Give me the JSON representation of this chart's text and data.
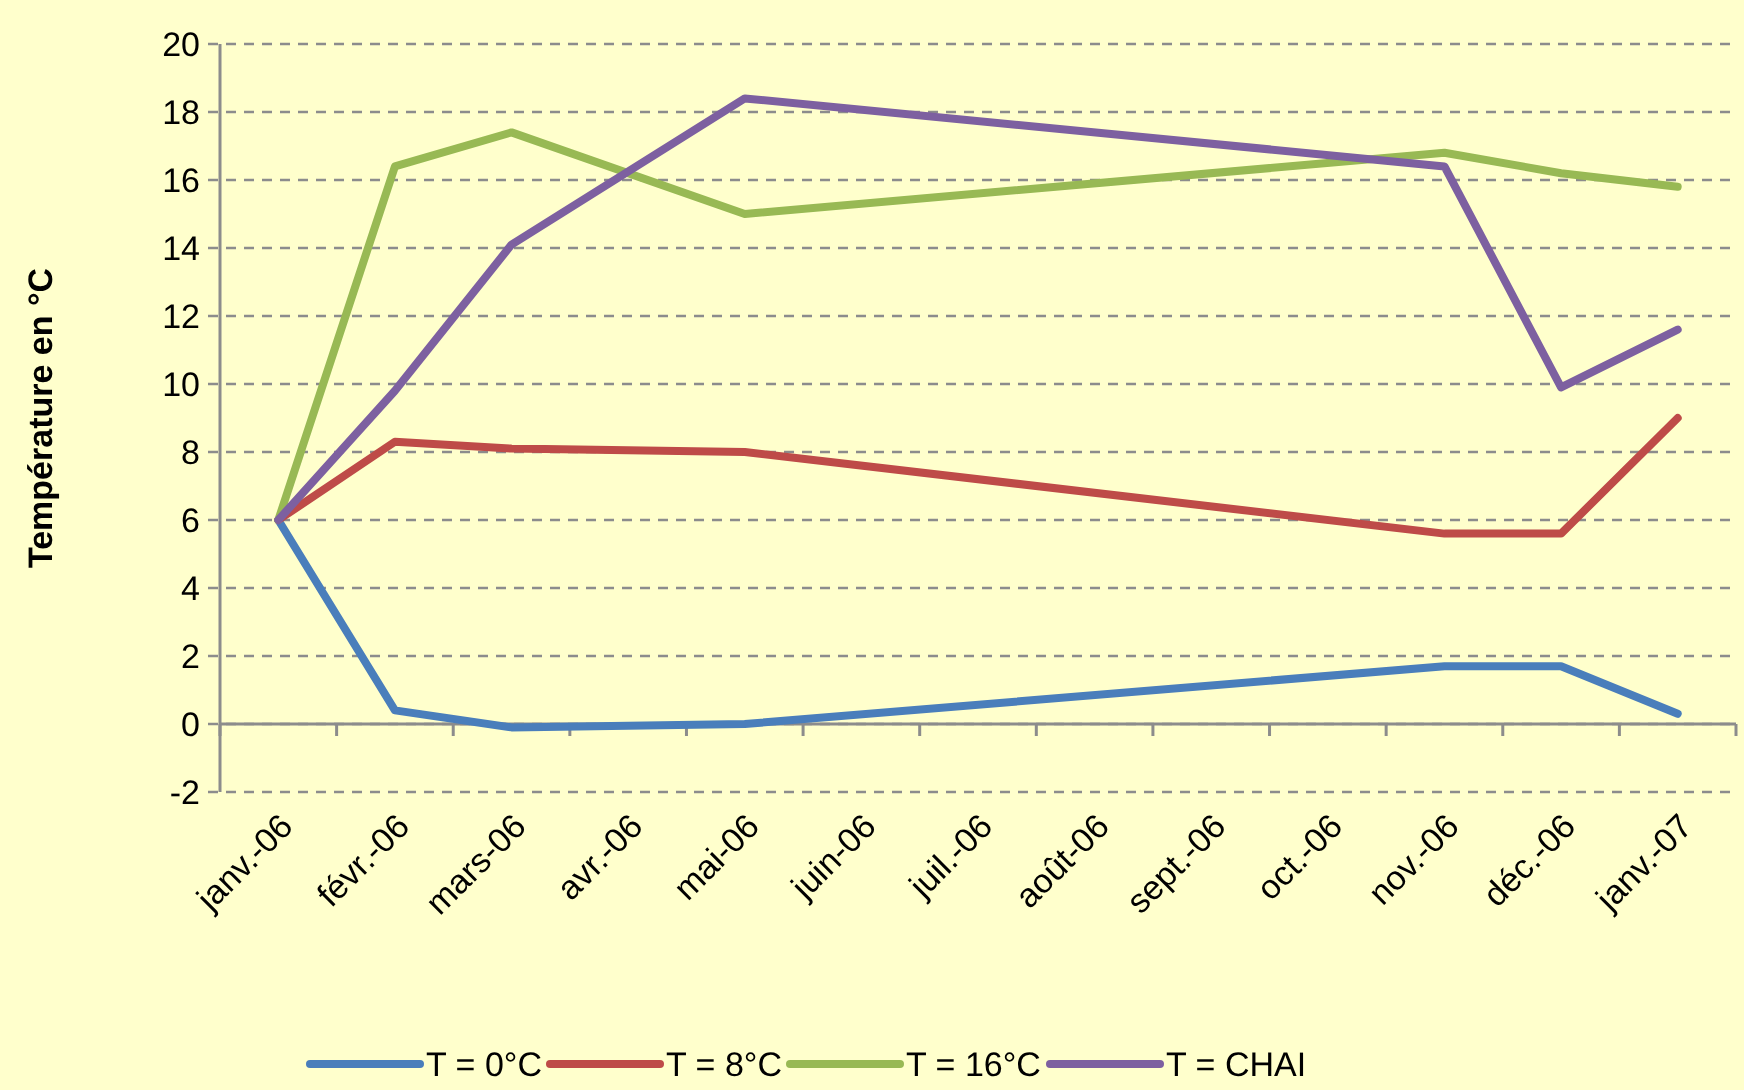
{
  "chart_data": {
    "type": "line",
    "ylabel": "Température en °C",
    "categories": [
      "janv.-06",
      "févr.-06",
      "mars-06",
      "avr.-06",
      "mai-06",
      "juin-06",
      "juil.-06",
      "août-06",
      "sept.-06",
      "oct.-06",
      "nov.-06",
      "déc.-06",
      "janv.-07"
    ],
    "series": [
      {
        "name": "T = 0°C",
        "color": "#4a7ebb",
        "values": [
          6,
          0.4,
          -0.1,
          null,
          0,
          null,
          null,
          null,
          null,
          null,
          1.7,
          1.7,
          0.3
        ]
      },
      {
        "name": "T = 8°C",
        "color": "#be4b48",
        "values": [
          6,
          8.3,
          8.1,
          null,
          8.0,
          null,
          null,
          null,
          null,
          null,
          5.6,
          5.6,
          9.0
        ]
      },
      {
        "name": "T = 16°C",
        "color": "#98b954",
        "values": [
          6,
          16.4,
          17.4,
          null,
          15.0,
          null,
          null,
          null,
          null,
          null,
          16.8,
          16.2,
          15.8
        ]
      },
      {
        "name": "T = CHAI",
        "color": "#7d60a0",
        "values": [
          6,
          9.8,
          14.1,
          null,
          18.4,
          null,
          null,
          null,
          null,
          null,
          16.4,
          9.9,
          11.6
        ]
      }
    ],
    "ylim": [
      -2,
      20
    ],
    "yticks": [
      -2,
      0,
      2,
      4,
      6,
      8,
      10,
      12,
      14,
      16,
      18,
      20
    ],
    "grid": "y",
    "legend": "bottom",
    "marker": "none",
    "line_style": "solid"
  }
}
